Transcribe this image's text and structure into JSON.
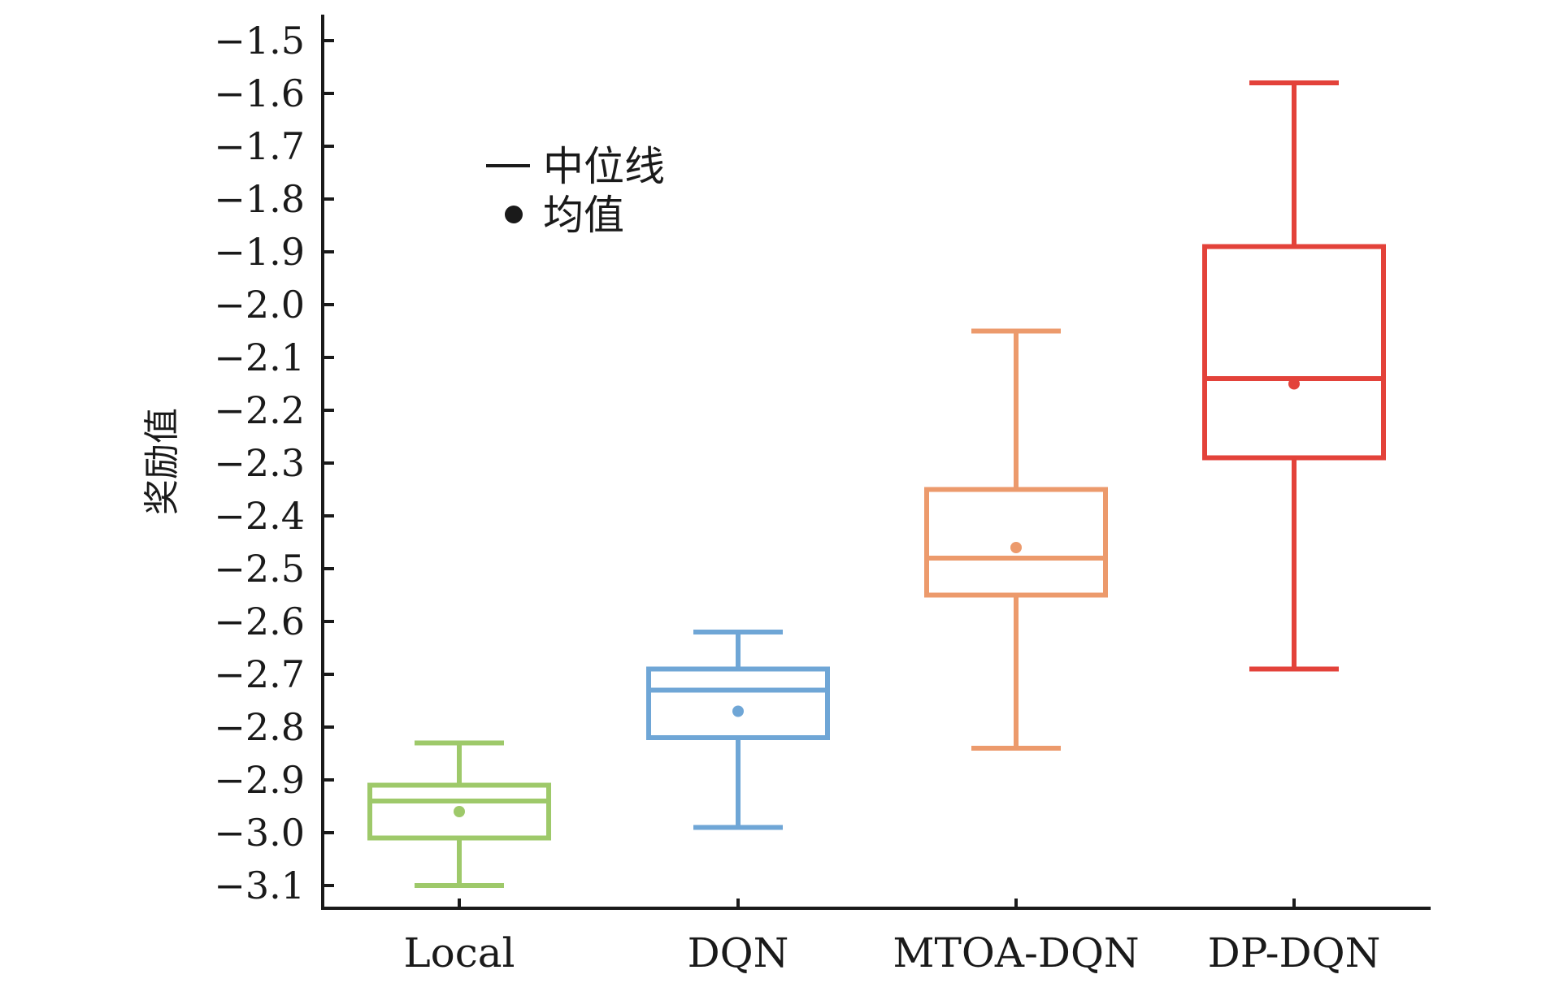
{
  "chart_data": {
    "type": "box",
    "ylabel": "奖励值",
    "xlabel": "",
    "ylim": [
      -3.15,
      -1.45
    ],
    "yticks": [
      -1.5,
      -1.6,
      -1.7,
      -1.8,
      -1.9,
      -2.0,
      -2.1,
      -2.2,
      -2.3,
      -2.4,
      -2.5,
      -2.6,
      -2.7,
      -2.8,
      -2.9,
      -3.0,
      -3.1
    ],
    "ytick_labels": [
      "−1.5",
      "−1.6",
      "−1.7",
      "−1.8",
      "−1.9",
      "−2.0",
      "−2.1",
      "−2.2",
      "−2.3",
      "−2.4",
      "−2.5",
      "−2.6",
      "−2.7",
      "−2.8",
      "−2.9",
      "−3.0",
      "−3.1"
    ],
    "categories": [
      "Local",
      "DQN",
      "MTOA-DQN",
      "DP-DQN"
    ],
    "series": [
      {
        "category": "Local",
        "color": "#9ec96a",
        "whisker_low": -3.1,
        "q1": -3.01,
        "median": -2.94,
        "q3": -2.91,
        "whisker_high": -2.83,
        "mean": -2.96
      },
      {
        "category": "DQN",
        "color": "#6fa6d6",
        "whisker_low": -2.99,
        "q1": -2.82,
        "median": -2.73,
        "q3": -2.69,
        "whisker_high": -2.62,
        "mean": -2.77
      },
      {
        "category": "MTOA-DQN",
        "color": "#ec9a6c",
        "whisker_low": -2.84,
        "q1": -2.55,
        "median": -2.48,
        "q3": -2.35,
        "whisker_high": -2.05,
        "mean": -2.46
      },
      {
        "category": "DP-DQN",
        "color": "#e3423a",
        "whisker_low": -2.69,
        "q1": -2.29,
        "median": -2.14,
        "q3": -1.89,
        "whisker_high": -1.58,
        "mean": -2.15
      }
    ],
    "legend": {
      "placement": "top-left",
      "median_label": "中位线",
      "mean_label": "均值",
      "color": "#1a1a1a"
    },
    "grid": false
  }
}
